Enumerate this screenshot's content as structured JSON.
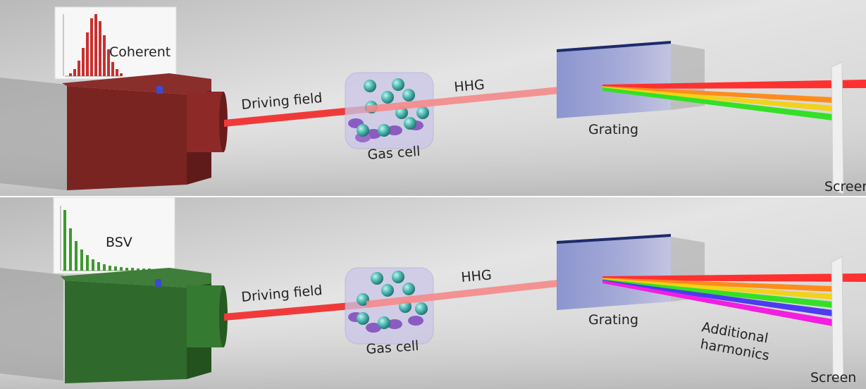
{
  "panels": [
    {
      "source_label": "Coherent",
      "driving_field": "Driving field",
      "hhg": "HHG",
      "gas_cell": "Gas cell",
      "grating": "Grating",
      "screen": "Screen"
    },
    {
      "source_label": "BSV",
      "driving_field": "Driving field",
      "hhg": "HHG",
      "gas_cell": "Gas cell",
      "grating": "Grating",
      "additional_harmonics": [
        "Additional",
        "harmonics"
      ],
      "screen": "Screen"
    }
  ]
}
